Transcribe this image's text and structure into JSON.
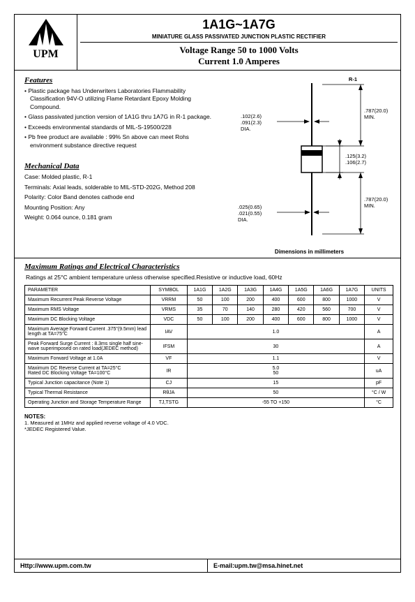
{
  "logo": {
    "text": "UPM"
  },
  "header": {
    "part": "1A1G~1A7G",
    "subtitle": "MINIATURE GLASS PASSIVATED JUNCTION PLASTIC RECTIFIER",
    "voltage": "Voltage Range 50 to 1000 Volts",
    "current": "Current 1.0 Amperes"
  },
  "features": {
    "title": "Features",
    "items": [
      "Plastic package has Underwriters Laboratories Flammability Classification 94V-O utilizing Flame Retardant Epoxy Molding Compound.",
      "Glass passivated junction version of 1A1G thru 1A7G in R-1 package.",
      "Exceeds environmental standards of MIL-S-19500/228",
      "Pb free product are available : 99% Sn above can meet Rohs environment substance directive request"
    ]
  },
  "mechanical": {
    "title": "Mechanical Data",
    "lines": [
      "Case: Molded plastic, R-1",
      "Terminals: Axial leads, solderable to MIL-STD-202G, Method 208",
      "Polarity: Color Band denotes cathode end",
      "Mounting Position: Any",
      "Weight: 0.064 ounce, 0.181 gram"
    ]
  },
  "diagram": {
    "label": "R-1",
    "lead_dia": {
      "a": ".102(2.6)",
      "b": ".091(2.3)",
      "dia": "DIA."
    },
    "body_h": {
      "a": ".125(3.2)",
      "b": ".106(2.7)"
    },
    "body_dia": {
      "a": ".025(0.65)",
      "b": ".021(0.55)",
      "dia": "DIA."
    },
    "lead_len": {
      "a": ".787(20.0)",
      "b": "MIN."
    },
    "caption": "Dimensions in millimeters"
  },
  "ratings": {
    "title": "Maximum Ratings and Electrical Characteristics",
    "subtitle": "Ratings at 25°C ambient temperature unless otherwise specified.Resistive or inductive load, 60Hz",
    "columns": [
      "PARAMETER",
      "SYMBOL",
      "1A1G",
      "1A2G",
      "1A3G",
      "1A4G",
      "1A5G",
      "1A6G",
      "1A7G",
      "UNITS"
    ],
    "rows": [
      {
        "param": "Maximum Recurrent Peak Reverse Voltage",
        "symbol": "VRRM",
        "vals": [
          "50",
          "100",
          "200",
          "400",
          "600",
          "800",
          "1000"
        ],
        "unit": "V"
      },
      {
        "param": "Maximum RMS Voltage",
        "symbol": "VRMS",
        "vals": [
          "35",
          "70",
          "140",
          "280",
          "420",
          "560",
          "700"
        ],
        "unit": "V"
      },
      {
        "param": "Maximum DC Blocking Voltage",
        "symbol": "VDC",
        "vals": [
          "50",
          "100",
          "200",
          "400",
          "600",
          "800",
          "1000"
        ],
        "unit": "V"
      },
      {
        "param": "Maximum Average Forward  Current .375\"(9.5mm) lead length at TA=75°C",
        "symbol": "IAV",
        "span": "1.0",
        "unit": "A"
      },
      {
        "param": "Peak Forward Surge Current : 8.3ms single half sine-wave superimposed on rated load(JEDEC method)",
        "symbol": "IFSM",
        "span": "30",
        "unit": "A"
      },
      {
        "param": "Maximum Forward Voltage at 1.0A",
        "symbol": "VF",
        "span": "1.1",
        "unit": "V"
      },
      {
        "param": "Maximum DC Reverse Current at TA=25°C\nRated DC Blocking Voltage   TA=100°C",
        "symbol": "IR",
        "span": "5.0\n50",
        "unit": "uA"
      },
      {
        "param": "Typical Junction capacitance (Note 1)",
        "symbol": "CJ",
        "span": "15",
        "unit": "pF"
      },
      {
        "param": "Typical Thermal Resistance",
        "symbol": "RθJA",
        "span": "50",
        "unit": "°C / W"
      },
      {
        "param": "Operating Junction and Storage Temperature Range",
        "symbol": "TJ,TSTG",
        "span": "-55 TO +150",
        "unit": "°C"
      }
    ]
  },
  "notes": {
    "title": "NOTES:",
    "lines": [
      "1. Measured at 1MHz and applied reverse voltage of 4.0 VDC.",
      "*JEDEC Registered Value."
    ]
  },
  "footer": {
    "site": "Http://www.upm.com.tw",
    "email": "E-mail:upm.tw@msa.hinet.net"
  }
}
